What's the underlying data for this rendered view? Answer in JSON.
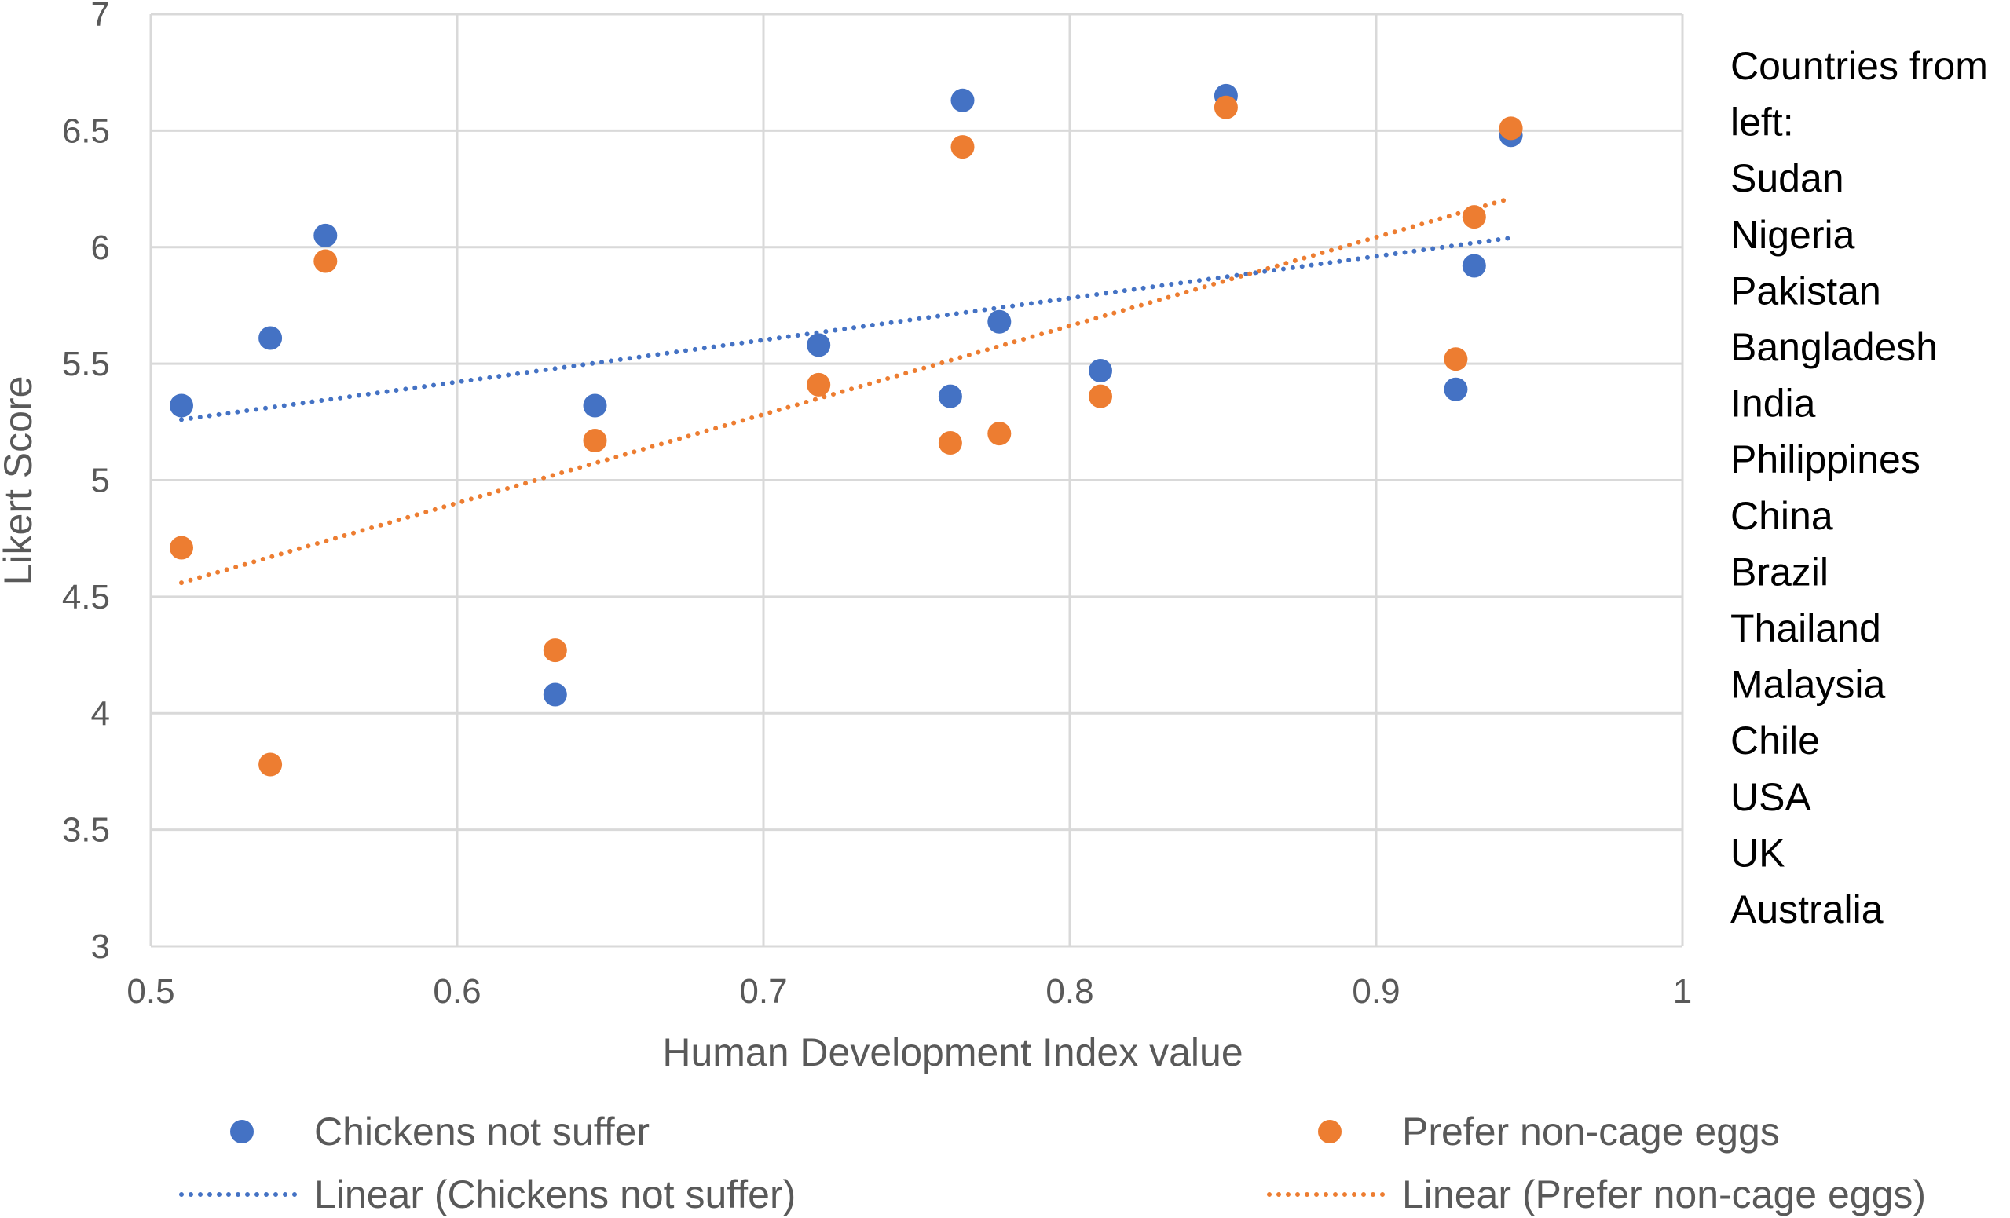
{
  "chart_data": {
    "type": "scatter",
    "title": "",
    "xlabel": "Human Development Index value",
    "ylabel": "Likert Score",
    "xlim": [
      0.5,
      1
    ],
    "ylim": [
      3,
      7
    ],
    "xticks": [
      0.5,
      0.6,
      0.7,
      0.8,
      0.9,
      1
    ],
    "xtick_labels": [
      "0.5",
      "0.6",
      "0.7",
      "0.8",
      "0.9",
      "1"
    ],
    "yticks": [
      3,
      3.5,
      4,
      4.5,
      5,
      5.5,
      6,
      6.5,
      7
    ],
    "ytick_labels": [
      "3",
      "3.5",
      "4",
      "4.5",
      "5",
      "5.5",
      "6",
      "6.5",
      "7"
    ],
    "grid": true,
    "legend_position": "bottom",
    "series": [
      {
        "name": "Chickens not suffer",
        "color": "#4472C4",
        "x": [
          0.51,
          0.539,
          0.557,
          0.632,
          0.645,
          0.718,
          0.761,
          0.765,
          0.777,
          0.81,
          0.851,
          0.926,
          0.932,
          0.944
        ],
        "y": [
          5.32,
          5.61,
          6.05,
          4.08,
          5.32,
          5.58,
          5.36,
          6.63,
          5.68,
          5.47,
          6.65,
          5.39,
          5.92,
          6.48
        ]
      },
      {
        "name": "Prefer non-cage eggs",
        "color": "#ED7D31",
        "x": [
          0.51,
          0.539,
          0.557,
          0.632,
          0.645,
          0.718,
          0.761,
          0.765,
          0.777,
          0.81,
          0.851,
          0.926,
          0.932,
          0.944
        ],
        "y": [
          4.71,
          3.78,
          5.94,
          4.27,
          5.17,
          5.41,
          5.16,
          6.43,
          5.2,
          5.36,
          6.6,
          5.52,
          6.13,
          6.51
        ]
      }
    ],
    "trendlines": [
      {
        "name": "Linear (Chickens not suffer)",
        "color": "#4472C4",
        "x": [
          0.51,
          0.944
        ],
        "y": [
          5.26,
          6.04
        ]
      },
      {
        "name": "Linear (Prefer non-cage eggs)",
        "color": "#ED7D31",
        "x": [
          0.51,
          0.944
        ],
        "y": [
          4.56,
          6.21
        ]
      }
    ],
    "annotation": {
      "lines": [
        "Countries from",
        "left:",
        "Sudan",
        "Nigeria",
        "Pakistan",
        "Bangladesh",
        "India",
        "Philippines",
        "China",
        "Brazil",
        "Thailand",
        "Malaysia",
        "Chile",
        "USA",
        "UK",
        "Australia"
      ]
    },
    "legend": {
      "items": [
        {
          "label": "Chickens not suffer",
          "color": "#4472C4",
          "kind": "marker"
        },
        {
          "label": "Prefer non-cage eggs",
          "color": "#ED7D31",
          "kind": "marker"
        },
        {
          "label": "Linear (Chickens not suffer)",
          "color": "#4472C4",
          "kind": "dotted-line"
        },
        {
          "label": "Linear (Prefer non-cage eggs)",
          "color": "#ED7D31",
          "kind": "dotted-line"
        }
      ]
    },
    "colors": {
      "grid": "#D9D9D9",
      "text": "#595959",
      "note": "#000000"
    }
  }
}
